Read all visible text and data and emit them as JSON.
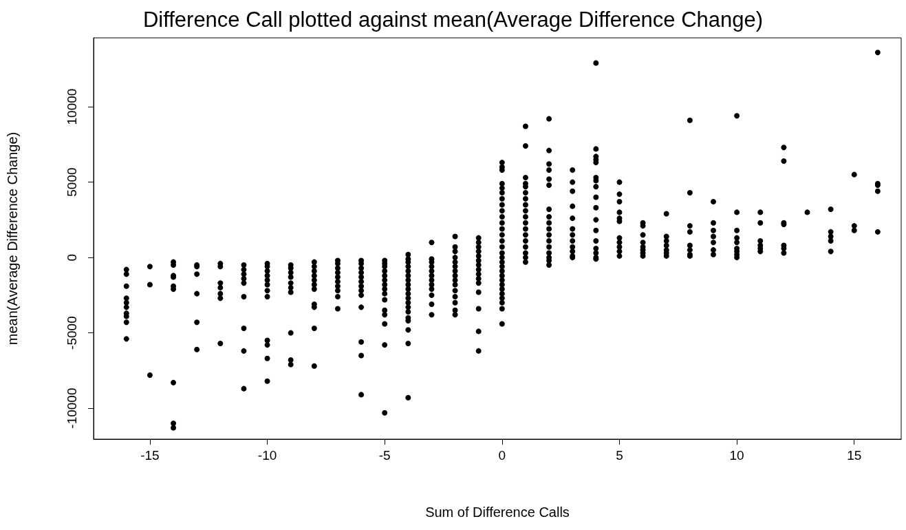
{
  "chart_data": {
    "type": "scatter",
    "title": "Difference Call plotted against mean(Average Difference Change)",
    "xlabel": "Sum of Difference Calls",
    "ylabel": "mean(Average Difference Change)",
    "xlim": [
      -17.4,
      17
    ],
    "xticks": [
      -15,
      -10,
      -5,
      0,
      5,
      10,
      15
    ],
    "ylim": [
      -12050,
      14570
    ],
    "yticks": [
      -10000,
      -5000,
      0,
      5000,
      10000
    ],
    "grid": false,
    "marker": "circle",
    "series": [
      {
        "color": "#000000",
        "x": [
          -16,
          -16,
          -16,
          -16,
          -16,
          -16,
          -16,
          -16,
          -16,
          -16,
          -15,
          -15,
          -15,
          -14,
          -14,
          -14,
          -14,
          -14,
          -14,
          -14,
          -14,
          -14,
          -13,
          -13,
          -13,
          -13,
          -13,
          -13,
          -12,
          -12,
          -12,
          -12,
          -12,
          -12,
          -12,
          -11,
          -11,
          -11,
          -11,
          -11,
          -11,
          -11,
          -11,
          -11,
          -10,
          -10,
          -10,
          -10,
          -10,
          -10,
          -10,
          -10,
          -10,
          -10,
          -10,
          -10,
          -9,
          -9,
          -9,
          -9,
          -9,
          -9,
          -9,
          -9,
          -9,
          -9,
          -8,
          -8,
          -8,
          -8,
          -8,
          -8,
          -8,
          -8,
          -8,
          -8,
          -8,
          -7,
          -7,
          -7,
          -7,
          -7,
          -7,
          -7,
          -7,
          -7,
          -7,
          -6,
          -6,
          -6,
          -6,
          -6,
          -6,
          -6,
          -6,
          -6,
          -6,
          -6,
          -6,
          -6,
          -5,
          -5,
          -5,
          -5,
          -5,
          -5,
          -5,
          -5,
          -5,
          -5,
          -5,
          -5,
          -5,
          -5,
          -5,
          -4,
          -4,
          -4,
          -4,
          -4,
          -4,
          -4,
          -4,
          -4,
          -4,
          -4,
          -4,
          -4,
          -4,
          -4,
          -4,
          -4,
          -4,
          -4,
          -3,
          -3,
          -3,
          -3,
          -3,
          -3,
          -3,
          -3,
          -3,
          -3,
          -3,
          -3,
          -2,
          -2,
          -2,
          -2,
          -2,
          -2,
          -2,
          -2,
          -2,
          -2,
          -2,
          -2,
          -2,
          -2,
          -2,
          -1,
          -1,
          -1,
          -1,
          -1,
          -1,
          -1,
          -1,
          -1,
          -1,
          -1,
          -1,
          -1,
          -1,
          -1,
          0,
          0,
          0,
          0,
          0,
          0,
          0,
          0,
          0,
          0,
          0,
          0,
          0,
          0,
          0,
          0,
          0,
          0,
          0,
          0,
          0,
          0,
          0,
          0,
          0,
          0,
          0,
          0,
          0,
          1,
          1,
          1,
          1,
          1,
          1,
          1,
          1,
          1,
          1,
          1,
          1,
          1,
          1,
          1,
          1,
          1,
          1,
          2,
          2,
          2,
          2,
          2,
          2,
          2,
          2,
          2,
          2,
          2,
          2,
          2,
          2,
          2,
          2,
          2,
          3,
          3,
          3,
          3,
          3,
          3,
          3,
          3,
          3,
          3,
          3,
          3,
          4,
          4,
          4,
          4,
          4,
          4,
          4,
          4,
          4,
          4,
          4,
          4,
          4,
          4,
          4,
          4,
          4,
          5,
          5,
          5,
          5,
          5,
          5,
          5,
          5,
          5,
          5,
          5,
          6,
          6,
          6,
          6,
          6,
          6,
          6,
          6,
          7,
          7,
          7,
          7,
          7,
          7,
          7,
          8,
          8,
          8,
          8,
          8,
          8,
          8,
          8,
          9,
          9,
          9,
          9,
          9,
          9,
          9,
          10,
          10,
          10,
          10,
          10,
          10,
          10,
          10,
          10,
          11,
          11,
          11,
          11,
          11,
          11,
          12,
          12,
          12,
          12,
          12,
          12,
          12,
          13,
          14,
          14,
          14,
          14,
          14,
          15,
          15,
          15,
          16,
          16,
          16,
          16,
          16
        ],
        "values": [
          -800,
          -1100,
          -1900,
          -2700,
          -3000,
          -3300,
          -3700,
          -3900,
          -4300,
          -5400,
          -600,
          -1800,
          -7800,
          -300,
          -500,
          -1200,
          -1300,
          -1900,
          -2100,
          -8300,
          -11000,
          -11300,
          -500,
          -600,
          -1100,
          -2400,
          -4300,
          -6100,
          -400,
          -600,
          -1700,
          -2000,
          -2400,
          -2700,
          -5700,
          -500,
          -800,
          -1100,
          -1400,
          -1700,
          -2600,
          -4700,
          -6200,
          -8700,
          -400,
          -600,
          -900,
          -1200,
          -1500,
          -1800,
          -2200,
          -2600,
          -5500,
          -5800,
          -6700,
          -8200,
          -500,
          -700,
          -1000,
          -1300,
          -1700,
          -2000,
          -2300,
          -5000,
          -6800,
          -7100,
          -300,
          -600,
          -900,
          -1200,
          -1500,
          -1800,
          -2100,
          -3100,
          -3300,
          -4700,
          -7200,
          -200,
          -400,
          -700,
          -1000,
          -1300,
          -1600,
          -1900,
          -2200,
          -2600,
          -3400,
          -200,
          -400,
          -700,
          -1000,
          -1300,
          -1600,
          -1900,
          -2200,
          -2500,
          -3300,
          -5600,
          -6500,
          -9100,
          -200,
          -400,
          -600,
          -900,
          -1200,
          -1500,
          -1800,
          -2100,
          -2400,
          -2800,
          -3500,
          -3800,
          -4400,
          -5800,
          -10300,
          200,
          -100,
          -300,
          -600,
          -900,
          -1200,
          -1500,
          -1800,
          -2100,
          -2400,
          -2700,
          -3000,
          -3300,
          -3600,
          -4000,
          -4200,
          -4800,
          -5700,
          -9300,
          1000,
          -100,
          -300,
          -600,
          -900,
          -1200,
          -1500,
          -1800,
          -2100,
          -2500,
          -3100,
          -3800,
          1400,
          700,
          400,
          0,
          -300,
          -600,
          -900,
          -1200,
          -1500,
          -1800,
          -2200,
          -2600,
          -3000,
          -3500,
          -3800,
          1300,
          1000,
          700,
          400,
          100,
          -200,
          -500,
          -800,
          -1100,
          -1400,
          -1700,
          -2300,
          -3400,
          -4900,
          -6200,
          6300,
          6000,
          5800,
          4900,
          4600,
          4300,
          3900,
          3500,
          3100,
          2700,
          2300,
          1900,
          1500,
          1100,
          700,
          300,
          0,
          -300,
          -600,
          -900,
          -1200,
          -1500,
          -1800,
          -2100,
          -2400,
          -2700,
          -3000,
          -3400,
          -4400,
          8700,
          7400,
          5300,
          4900,
          4700,
          4300,
          3900,
          3500,
          3100,
          2700,
          2300,
          1900,
          1500,
          1100,
          700,
          300,
          0,
          -300,
          9200,
          7100,
          6200,
          5800,
          5200,
          4800,
          3200,
          2700,
          2300,
          1900,
          1500,
          1100,
          700,
          300,
          0,
          -200,
          -500,
          5800,
          5000,
          4400,
          3400,
          2600,
          1900,
          1500,
          1100,
          700,
          400,
          100,
          0,
          12900,
          7200,
          6700,
          6500,
          6300,
          5300,
          5100,
          4700,
          4000,
          3300,
          2500,
          1800,
          1100,
          600,
          300,
          0,
          -100,
          5000,
          4200,
          3700,
          3000,
          2600,
          2400,
          1300,
          1000,
          700,
          400,
          100,
          2300,
          2100,
          1500,
          1000,
          700,
          500,
          300,
          100,
          2900,
          1400,
          1100,
          800,
          500,
          300,
          100,
          9100,
          4300,
          2100,
          1700,
          800,
          500,
          200,
          100,
          3700,
          2300,
          1800,
          1400,
          1000,
          500,
          200,
          9400,
          3000,
          1800,
          1300,
          1000,
          600,
          400,
          200,
          0,
          3000,
          2300,
          1100,
          800,
          600,
          400,
          7300,
          6400,
          2300,
          2200,
          800,
          600,
          300,
          3000,
          3200,
          1700,
          1400,
          1100,
          400,
          5500,
          2100,
          1800,
          13600,
          4900,
          4800,
          4400,
          1700
        ]
      }
    ]
  }
}
